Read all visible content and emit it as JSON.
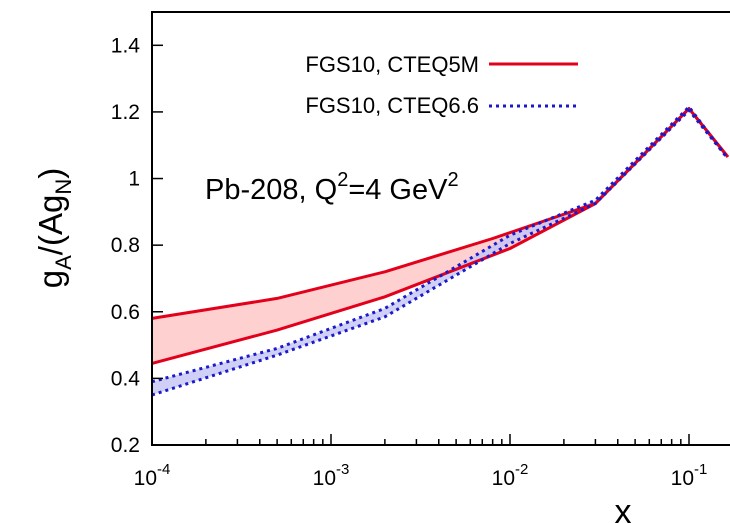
{
  "chart_data": {
    "type": "line",
    "title": "",
    "annotation": {
      "base": "Pb-208, Q",
      "sup1": "2",
      "mid": "=4 GeV",
      "sup2": "2"
    },
    "xlabel": "x",
    "ylabel": {
      "g": "g",
      "sub_a": "A",
      "mid": "/(Ag",
      "sub_n": "N",
      "end": ")"
    },
    "x_scale": "log",
    "xlim": [
      0.0001,
      0.165
    ],
    "ylim": [
      0.2,
      1.5
    ],
    "x_ticks": [
      {
        "value": 0.0001,
        "base": "10",
        "exp": "-4"
      },
      {
        "value": 0.001,
        "base": "10",
        "exp": "-3"
      },
      {
        "value": 0.01,
        "base": "10",
        "exp": "-2"
      },
      {
        "value": 0.1,
        "base": "10",
        "exp": "-1"
      }
    ],
    "y_ticks": [
      {
        "value": 0.2,
        "label": "0.2"
      },
      {
        "value": 0.4,
        "label": "0.4"
      },
      {
        "value": 0.6,
        "label": "0.6"
      },
      {
        "value": 0.8,
        "label": "0.8"
      },
      {
        "value": 1.0,
        "label": "1"
      },
      {
        "value": 1.2,
        "label": "1.2"
      },
      {
        "value": 1.4,
        "label": "1.4"
      }
    ],
    "grid": false,
    "legend_position": "top-left",
    "series": [
      {
        "name": "FGS10, CTEQ5M",
        "color": "#e3001b",
        "fill": "#ffc8c8",
        "style": "solid",
        "upper": {
          "x": [
            0.0001,
            0.0005,
            0.002,
            0.008,
            0.03,
            0.1,
            0.165
          ],
          "y": [
            0.58,
            0.64,
            0.72,
            0.82,
            0.925,
            1.21,
            1.065
          ]
        },
        "lower": {
          "x": [
            0.0001,
            0.0005,
            0.002,
            0.01,
            0.03,
            0.1,
            0.165
          ],
          "y": [
            0.445,
            0.545,
            0.645,
            0.79,
            0.925,
            1.21,
            1.065
          ]
        }
      },
      {
        "name": "FGS10, CTEQ6.6",
        "color": "#1a1acc",
        "fill": "#c4c4f5",
        "style": "dotted",
        "upper": {
          "x": [
            0.0001,
            0.0005,
            0.002,
            0.01,
            0.03,
            0.1,
            0.165
          ],
          "y": [
            0.39,
            0.49,
            0.61,
            0.83,
            0.935,
            1.215,
            1.06
          ]
        },
        "lower": {
          "x": [
            0.0001,
            0.0005,
            0.002,
            0.01,
            0.03,
            0.1,
            0.165
          ],
          "y": [
            0.35,
            0.47,
            0.585,
            0.805,
            0.925,
            1.205,
            1.06
          ]
        }
      }
    ]
  }
}
